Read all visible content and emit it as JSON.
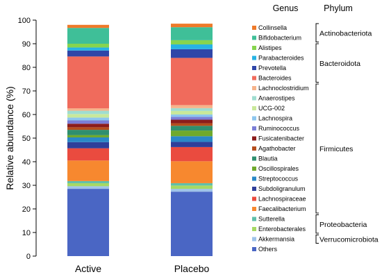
{
  "chart_data": {
    "type": "stacked-bar",
    "ylabel": "Relative abundance (%)",
    "xlabel": "",
    "ylim": [
      0,
      100
    ],
    "yticks": [
      0,
      10,
      20,
      30,
      40,
      50,
      60,
      70,
      80,
      90,
      100
    ],
    "grid": false,
    "legend_position": "right",
    "legend_header": {
      "genus": "Genus",
      "phylum": "Phylum"
    },
    "categories": [
      "Active",
      "Placebo"
    ],
    "series": [
      {
        "name": "Others",
        "color": "#4a66c4",
        "values": [
          28.5,
          27.3
        ]
      },
      {
        "name": "Akkermansia",
        "color": "#9fc3e9",
        "values": [
          1.1,
          1.2
        ]
      },
      {
        "name": "Enterobacterales",
        "color": "#a6d964",
        "values": [
          1.3,
          1.4
        ]
      },
      {
        "name": "Sutterella",
        "color": "#5fbfaa",
        "values": [
          0.9,
          1.0
        ]
      },
      {
        "name": "Faecalibacterium",
        "color": "#f7882f",
        "values": [
          8.7,
          9.3
        ]
      },
      {
        "name": "Lachnospiraceae",
        "color": "#ea4b3f",
        "values": [
          5.2,
          6.0
        ]
      },
      {
        "name": "Subdoligranulum",
        "color": "#2f3f9a",
        "values": [
          2.6,
          2.2
        ]
      },
      {
        "name": "Streptococcus",
        "color": "#2a88c7",
        "values": [
          2.0,
          2.4
        ]
      },
      {
        "name": "Oscillospirales",
        "color": "#6fa92d",
        "values": [
          1.0,
          2.4
        ]
      },
      {
        "name": "Blautia",
        "color": "#2f8f6f",
        "values": [
          2.2,
          2.0
        ]
      },
      {
        "name": "Agathobacter",
        "color": "#b54e1d",
        "values": [
          1.1,
          1.1
        ]
      },
      {
        "name": "Fusicatenibacter",
        "color": "#8b1c1c",
        "values": [
          1.5,
          1.5
        ]
      },
      {
        "name": "Ruminococcus",
        "color": "#7b7ed6",
        "values": [
          1.4,
          1.2
        ]
      },
      {
        "name": "Lachnospira",
        "color": "#8dc6ee",
        "values": [
          1.2,
          1.0
        ]
      },
      {
        "name": "UCG-002",
        "color": "#c9e89a",
        "values": [
          1.5,
          1.5
        ]
      },
      {
        "name": "Anaerostipes",
        "color": "#9fddd0",
        "values": [
          1.4,
          1.2
        ]
      },
      {
        "name": "Lachnoclostridium",
        "color": "#f6b38a",
        "values": [
          1.0,
          1.3
        ]
      },
      {
        "name": "Bacteroides",
        "color": "#f06b5c",
        "values": [
          22.0,
          20.0
        ]
      },
      {
        "name": "Prevotella",
        "color": "#2f46a8",
        "values": [
          2.5,
          3.7
        ]
      },
      {
        "name": "Parabacteroides",
        "color": "#27b3e3",
        "values": [
          1.3,
          2.0
        ]
      },
      {
        "name": "Alistipes",
        "color": "#86d44e",
        "values": [
          1.6,
          1.8
        ]
      },
      {
        "name": "Bifidobacterium",
        "color": "#3fbf98",
        "values": [
          6.7,
          5.5
        ]
      },
      {
        "name": "Collinsella",
        "color": "#ee7a2a",
        "values": [
          1.3,
          1.5
        ]
      }
    ],
    "phyla": [
      {
        "name": "Actinobacteriota",
        "members": [
          "Collinsella",
          "Bifidobacterium"
        ]
      },
      {
        "name": "Bacteroidota",
        "members": [
          "Alistipes",
          "Parabacteroides",
          "Prevotella",
          "Bacteroides"
        ]
      },
      {
        "name": "Firmicutes",
        "members": [
          "Lachnoclostridium",
          "Anaerostipes",
          "UCG-002",
          "Lachnospira",
          "Ruminococcus",
          "Fusicatenibacter",
          "Agathobacter",
          "Blautia",
          "Oscillospirales",
          "Streptococcus",
          "Subdoligranulum",
          "Lachnospiraceae",
          "Faecalibacterium"
        ]
      },
      {
        "name": "Proteobacteria",
        "members": [
          "Sutterella",
          "Enterobacterales"
        ]
      },
      {
        "name": "Verrucomicrobiota",
        "members": [
          "Akkermansia"
        ]
      }
    ]
  }
}
